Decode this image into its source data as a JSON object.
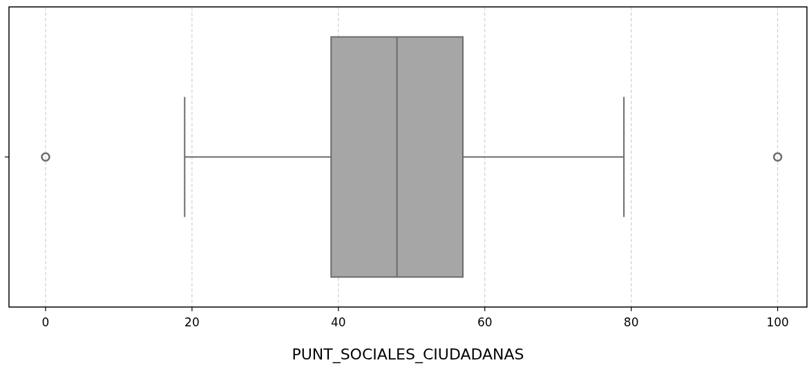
{
  "chart_data": {
    "type": "box",
    "orientation": "horizontal",
    "xlabel": "PUNT_SOCIALES_CIUDADANAS",
    "categories": [
      null
    ],
    "series": [
      {
        "color": "#a6a6a6",
        "boxes": [
          {
            "low": 19,
            "q1": 39,
            "median": 48,
            "q3": 57,
            "high": 79,
            "outliers": [
              0,
              100
            ]
          }
        ]
      }
    ],
    "xlim": [
      -5,
      104
    ],
    "xticks": [
      0,
      20,
      40,
      60,
      80,
      100
    ],
    "grid": "x"
  }
}
